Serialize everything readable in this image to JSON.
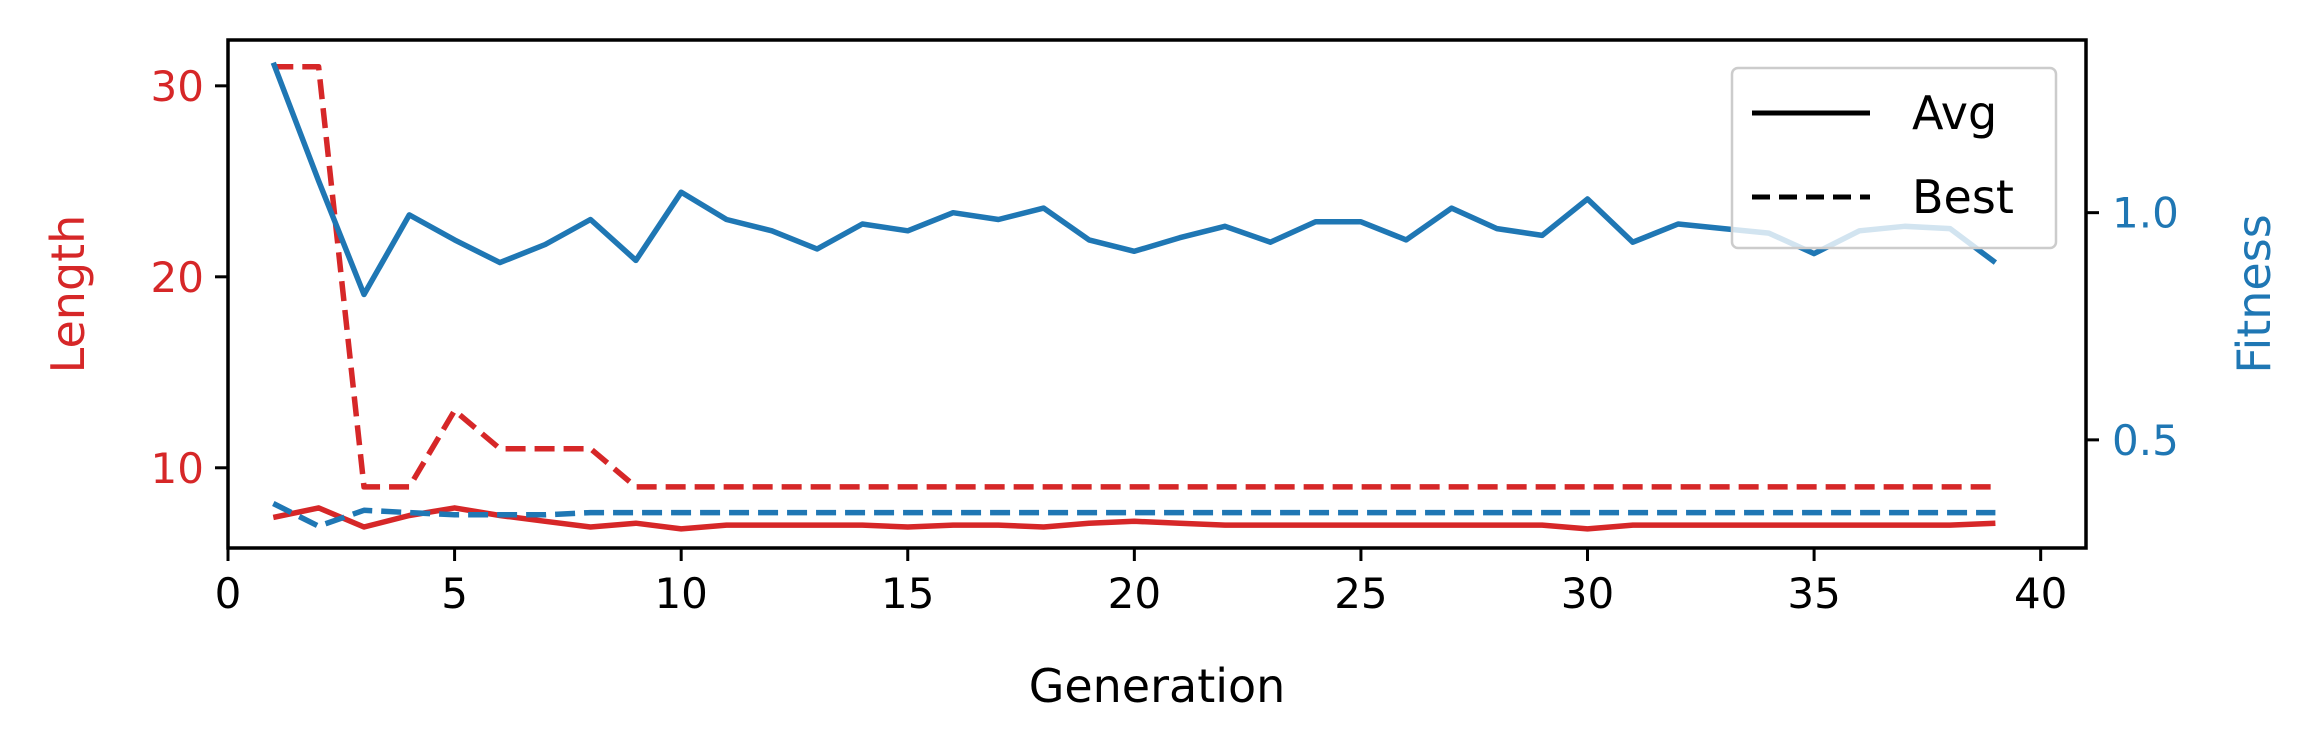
{
  "chart_data": {
    "type": "line",
    "xlabel": "Generation",
    "ylabel_left": "Length",
    "ylabel_right": "Fitness",
    "xlim": [
      0,
      41
    ],
    "ylim_left": [
      5.8,
      32.4
    ],
    "ylim_right": [
      0.262,
      1.38
    ],
    "x_ticks": [
      0,
      5,
      10,
      15,
      20,
      25,
      30,
      35,
      40
    ],
    "y_left_ticks": [
      10,
      20,
      30
    ],
    "y_right_ticks": [
      0.5,
      1.0
    ],
    "y_right_tick_labels": [
      "0.5",
      "1.0"
    ],
    "grid": false,
    "legend": {
      "placement": "top-right",
      "entries": [
        {
          "label": "Avg",
          "style": "solid"
        },
        {
          "label": "Best",
          "style": "dashed"
        }
      ]
    },
    "colors": {
      "length": "#d62728",
      "fitness": "#1f77b4",
      "axis": "#000000"
    },
    "x": [
      1,
      2,
      3,
      4,
      5,
      6,
      7,
      8,
      9,
      10,
      11,
      12,
      13,
      14,
      15,
      16,
      17,
      18,
      19,
      20,
      21,
      22,
      23,
      24,
      25,
      26,
      27,
      28,
      29,
      30,
      31,
      32,
      33,
      34,
      35,
      36,
      37,
      38,
      39
    ],
    "series": [
      {
        "name": "Avg",
        "axis": "left",
        "color": "#d62728",
        "style": "solid",
        "values": [
          7.4,
          7.9,
          6.9,
          7.5,
          7.9,
          7.5,
          7.2,
          6.9,
          7.1,
          6.8,
          7.0,
          7.0,
          7.0,
          7.0,
          6.9,
          7.0,
          7.0,
          6.9,
          7.1,
          7.2,
          7.1,
          7.0,
          7.0,
          7.0,
          7.0,
          7.0,
          7.0,
          7.0,
          7.0,
          6.8,
          7.0,
          7.0,
          7.0,
          7.0,
          7.0,
          7.0,
          7.0,
          7.0,
          7.1
        ]
      },
      {
        "name": "Best",
        "axis": "left",
        "color": "#d62728",
        "style": "dashed",
        "values": [
          31,
          31,
          9,
          9,
          13,
          11,
          11,
          11,
          9,
          9,
          9,
          9,
          9,
          9,
          9,
          9,
          9,
          9,
          9,
          9,
          9,
          9,
          9,
          9,
          9,
          9,
          9,
          9,
          9,
          9,
          9,
          9,
          9,
          9,
          9,
          9,
          9,
          9,
          9
        ]
      },
      {
        "name": "Avg",
        "axis": "right",
        "color": "#1f77b4",
        "style": "solid",
        "values": [
          1.33,
          1.07,
          0.82,
          0.995,
          0.94,
          0.89,
          0.93,
          0.985,
          0.895,
          1.045,
          0.985,
          0.96,
          0.92,
          0.975,
          0.96,
          1.0,
          0.985,
          1.01,
          0.94,
          0.915,
          0.945,
          0.97,
          0.935,
          0.98,
          0.98,
          0.94,
          1.01,
          0.965,
          0.95,
          1.03,
          0.935,
          0.975,
          0.965,
          0.955,
          0.91,
          0.96,
          0.97,
          0.965,
          0.89
        ]
      },
      {
        "name": "Best",
        "axis": "right",
        "color": "#1f77b4",
        "style": "dashed",
        "values": [
          0.36,
          0.31,
          0.345,
          0.34,
          0.335,
          0.335,
          0.335,
          0.34,
          0.34,
          0.34,
          0.34,
          0.34,
          0.34,
          0.34,
          0.34,
          0.34,
          0.34,
          0.34,
          0.34,
          0.34,
          0.34,
          0.34,
          0.34,
          0.34,
          0.34,
          0.34,
          0.34,
          0.34,
          0.34,
          0.34,
          0.34,
          0.34,
          0.34,
          0.34,
          0.34,
          0.34,
          0.34,
          0.34,
          0.34
        ]
      }
    ]
  }
}
